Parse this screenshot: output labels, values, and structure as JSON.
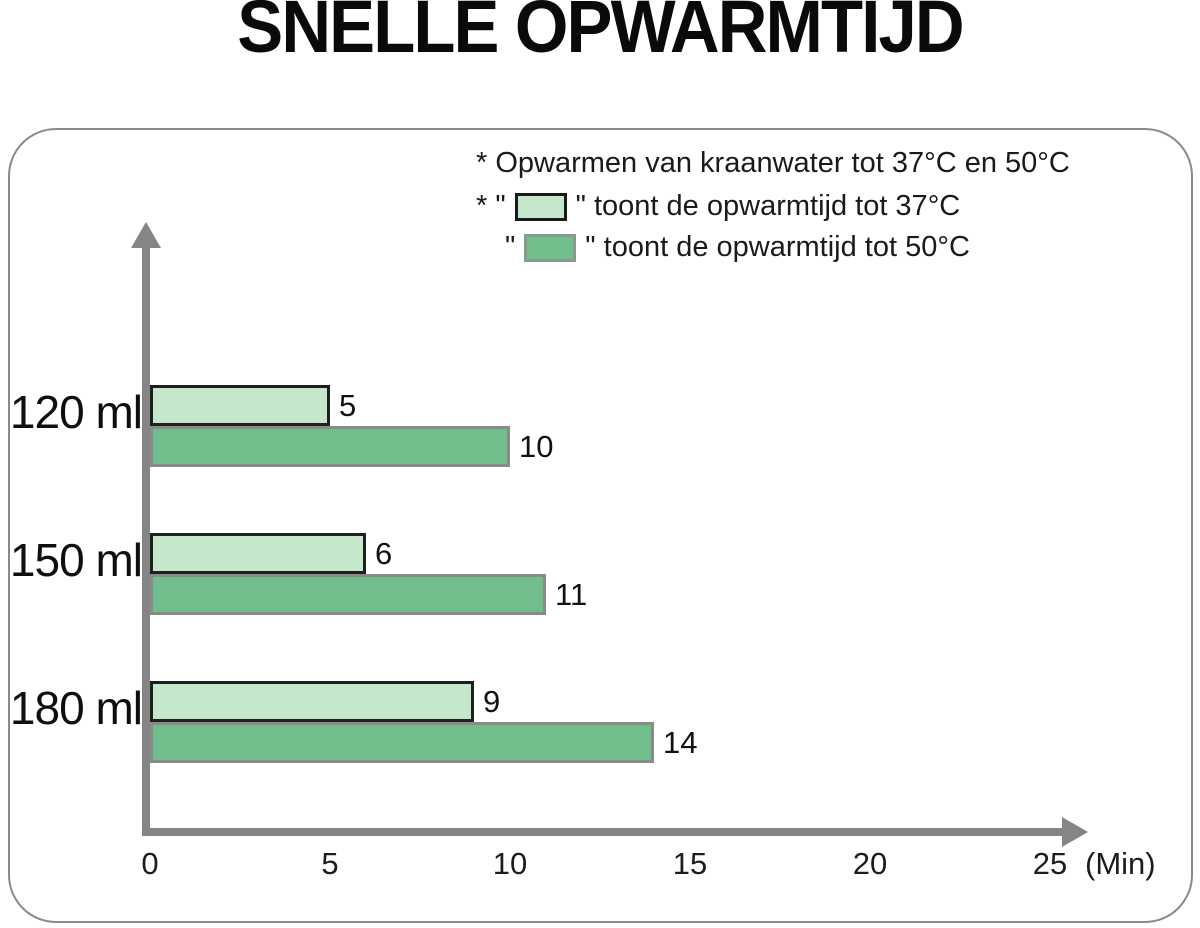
{
  "title": "SNELLE OPWARMTIJD",
  "legend": {
    "note": "* Opwarmen van kraanwater tot 37°C en 50°C",
    "items": [
      {
        "prefix": "* \"",
        "suffix": "\" toont de opwarmtijd tot 37°C",
        "swatch_color": "#c5e8cd",
        "swatch_border": "#1a1a1a"
      },
      {
        "prefix": "\"",
        "suffix": "\" toont de opwarmtijd tot 50°C",
        "swatch_color": "#6fbe8c",
        "swatch_border": "#879b8d"
      }
    ]
  },
  "chart_data": {
    "type": "bar",
    "orientation": "horizontal",
    "title": "SNELLE OPWARMTIJD",
    "categories": [
      "120 ml",
      "150 ml",
      "180 ml"
    ],
    "series": [
      {
        "name": "opwarmtijd tot 37°C",
        "values": [
          5,
          6,
          9
        ],
        "color": "#c5e8cd",
        "border_color": "#1f1f1f"
      },
      {
        "name": "opwarmtijd tot 50°C",
        "values": [
          10,
          11,
          14
        ],
        "color": "#6fbe8c",
        "border_color": "#8a8a8a"
      }
    ],
    "x_ticks": [
      0,
      5,
      10,
      15,
      20,
      25
    ],
    "x_unit": "(Min)",
    "xlim": [
      0,
      25
    ],
    "ylabel": "",
    "xlabel": "Min",
    "grid": false,
    "legend_position": "top-right",
    "axis_color": "#858585"
  }
}
